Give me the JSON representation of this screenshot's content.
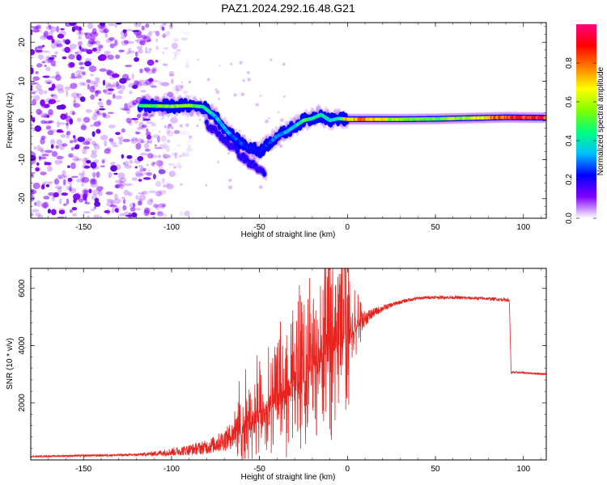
{
  "title": "PAZ1.2024.292.16.48.G21",
  "chart_data": [
    {
      "type": "heatmap",
      "xlabel": "Height of straight line (km)",
      "ylabel": "Frequency (Hz)",
      "xlim": [
        -180,
        113
      ],
      "ylim": [
        -25,
        25
      ],
      "x_ticks": [
        -150,
        -100,
        -50,
        0,
        50,
        100
      ],
      "y_ticks": [
        -20,
        -10,
        0,
        10,
        20
      ],
      "colorbar": {
        "label": "Normalized spectral amplitude",
        "range": [
          0,
          1
        ],
        "ticks": [
          "0.0",
          "0.2",
          "0.4",
          "0.6",
          "0.8"
        ],
        "tick_values": [
          0,
          0.2,
          0.4,
          0.6,
          0.8
        ],
        "colors": [
          "#ffffff",
          "#8000ff",
          "#0000ff",
          "#00c0ff",
          "#00ff80",
          "#80ff00",
          "#ffff00",
          "#ff8000",
          "#ff0000",
          "#ff0080"
        ]
      },
      "ridge": {
        "x": [
          -118,
          -110,
          -100,
          -90,
          -82,
          -75,
          -68,
          -60,
          -55,
          -50,
          -45,
          -40,
          -35,
          -30,
          -25,
          -20,
          -15,
          -10,
          -5,
          0,
          10,
          30,
          50,
          70,
          90,
          113
        ],
        "y": [
          3.8,
          3.7,
          3.6,
          3.8,
          3.5,
          1,
          -3,
          -6,
          -7,
          -8,
          -6,
          -4,
          -3,
          -1.5,
          0,
          0.5,
          1.5,
          0,
          0.5,
          0.3,
          0.3,
          0.3,
          0.4,
          0.6,
          0.8,
          0.7
        ],
        "amplitude": [
          0.45,
          0.5,
          0.55,
          0.55,
          0.45,
          0.35,
          0.3,
          0.25,
          0.25,
          0.2,
          0.25,
          0.3,
          0.3,
          0.35,
          0.45,
          0.45,
          0.4,
          0.35,
          0.4,
          0.7,
          0.75,
          0.55,
          0.5,
          0.6,
          0.85,
          0.9
        ]
      },
      "branch": {
        "x": [
          -80,
          -72,
          -65,
          -58,
          -52,
          -47
        ],
        "y": [
          -1,
          -4,
          -7,
          -10,
          -12,
          -13.5
        ]
      },
      "noise_region_x": [
        -180,
        -115
      ],
      "color_hex": "#8000ff"
    },
    {
      "type": "line",
      "xlabel": "Height of straight line (km)",
      "ylabel": "SNR (10 * v/v)",
      "xlim": [
        -180,
        113
      ],
      "ylim": [
        0,
        6700
      ],
      "x_ticks": [
        -150,
        -100,
        -50,
        0,
        50,
        100
      ],
      "y_ticks": [
        2000,
        4000,
        6000
      ],
      "color_hex": "#e8231f",
      "series": [
        {
          "x": [
            -180,
            -160,
            -140,
            -120,
            -110,
            -100,
            -90,
            -80,
            -75,
            -70,
            -65,
            -60,
            -55,
            -50,
            -45,
            -40,
            -35,
            -30,
            -25,
            -20,
            -15,
            -10,
            -5,
            -2,
            0,
            2,
            5,
            10,
            15,
            20,
            25,
            30,
            35,
            40,
            45,
            50,
            60,
            70,
            80,
            90,
            92,
            93,
            94,
            100,
            113
          ],
          "values": [
            120,
            140,
            160,
            180,
            220,
            280,
            350,
            450,
            560,
            700,
            880,
            1100,
            1300,
            1500,
            1750,
            2050,
            2350,
            2650,
            2950,
            3250,
            3550,
            3850,
            4100,
            4200,
            4250,
            4400,
            4650,
            4950,
            5150,
            5300,
            5420,
            5520,
            5600,
            5650,
            5680,
            5690,
            5680,
            5660,
            5640,
            5600,
            5580,
            3050,
            3060,
            3050,
            3000
          ],
          "amplitude": [
            50,
            60,
            70,
            80,
            150,
            250,
            350,
            450,
            550,
            700,
            900,
            1100,
            1300,
            1450,
            1600,
            1700,
            1800,
            1900,
            2000,
            2100,
            2300,
            2400,
            2200,
            2100,
            2000,
            1400,
            900,
            500,
            300,
            200,
            150,
            120,
            110,
            100,
            100,
            100,
            100,
            100,
            100,
            100,
            100,
            60,
            60,
            60,
            60
          ]
        }
      ]
    }
  ]
}
